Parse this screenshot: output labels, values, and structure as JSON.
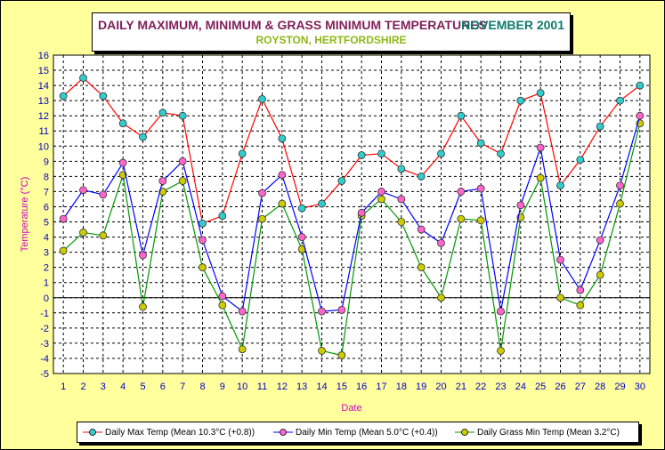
{
  "header": {
    "title": "DAILY MAXIMUM, MINIMUM & GRASS MINIMUM TEMPERATURES",
    "period": "NOVEMBER 2001",
    "location": "ROYSTON, HERTFORDSHIRE"
  },
  "colors": {
    "background": "#ffff9c",
    "max": "#ff0000",
    "max_marker": "#33cccc",
    "min": "#0000ff",
    "min_marker": "#ff66cc",
    "grass": "#009900",
    "grass_marker": "#cccc00",
    "tick_text": "#0000cc",
    "axis_title": "#cc00cc"
  },
  "chart_data": {
    "type": "line",
    "title": "DAILY MAXIMUM, MINIMUM & GRASS MINIMUM TEMPERATURES",
    "xlabel": "Date",
    "ylabel": "Temperature (°C)",
    "xlim": [
      1,
      30
    ],
    "ylim": [
      -5,
      16
    ],
    "grid": true,
    "legend_position": "bottom",
    "x": [
      1,
      2,
      3,
      4,
      5,
      6,
      7,
      8,
      9,
      10,
      11,
      12,
      13,
      14,
      15,
      16,
      17,
      18,
      19,
      20,
      21,
      22,
      23,
      24,
      25,
      26,
      27,
      28,
      29,
      30
    ],
    "y_ticks": [
      -5,
      -4,
      -3,
      -2,
      -1,
      0,
      1,
      2,
      3,
      4,
      5,
      6,
      7,
      8,
      9,
      10,
      11,
      12,
      13,
      14,
      15,
      16
    ],
    "series": [
      {
        "name": "Daily Max Temp (Mean 10.3°C (+0.8))",
        "line_color": "#ff0000",
        "marker_color": "#33cccc",
        "values": [
          13.3,
          14.5,
          13.3,
          11.5,
          10.6,
          12.2,
          12.0,
          4.9,
          5.4,
          9.5,
          13.1,
          10.5,
          5.9,
          6.2,
          7.7,
          9.4,
          9.5,
          8.5,
          8.0,
          9.5,
          12.0,
          10.2,
          9.5,
          13.0,
          13.5,
          7.4,
          9.1,
          11.3,
          13.0,
          14.0
        ]
      },
      {
        "name": "Daily Min Temp (Mean 5.0°C (+0.4))",
        "line_color": "#0000ff",
        "marker_color": "#ff66cc",
        "values": [
          5.2,
          7.1,
          6.8,
          8.9,
          2.8,
          7.7,
          9.0,
          3.8,
          0.1,
          -0.9,
          6.9,
          8.1,
          4.0,
          -0.9,
          -0.8,
          5.6,
          7.0,
          6.5,
          4.5,
          3.6,
          7.0,
          7.2,
          -0.9,
          6.1,
          9.9,
          2.5,
          0.5,
          3.8,
          7.4,
          12.0
        ]
      },
      {
        "name": "Daily Grass Min Temp (Mean 3.2°C)",
        "line_color": "#009900",
        "marker_color": "#cccc00",
        "values": [
          3.1,
          4.3,
          4.1,
          8.1,
          -0.6,
          7.0,
          7.7,
          2.0,
          -0.5,
          -3.4,
          5.2,
          6.2,
          3.2,
          -3.5,
          -3.8,
          5.4,
          6.5,
          5.0,
          2.0,
          0.0,
          5.2,
          5.1,
          -3.5,
          5.3,
          7.9,
          0.0,
          -0.5,
          1.5,
          6.2,
          11.5
        ]
      }
    ]
  }
}
